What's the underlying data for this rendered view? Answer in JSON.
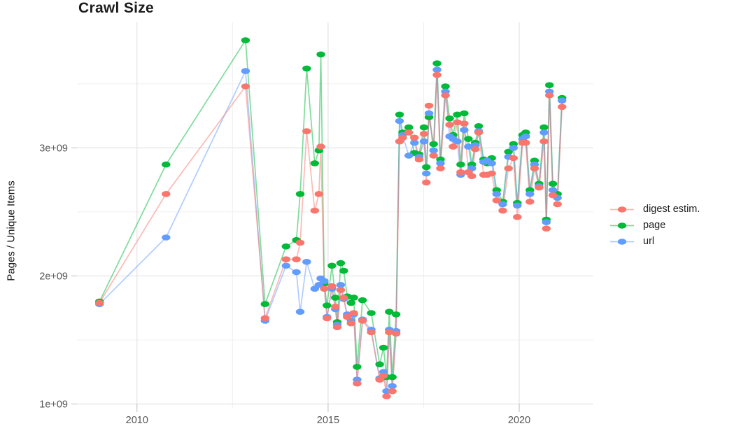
{
  "chart_data": {
    "type": "line",
    "title": "Crawl Size",
    "ylabel": "Pages / Unique Items",
    "xlabel": "",
    "value_unit": "1e9 (billions of pages / unique items)",
    "grid": true,
    "legend_position": "right",
    "marker": "ellipse",
    "xlim": [
      2008.43,
      2021.94
    ],
    "ylim": [
      0.97,
      3.98
    ],
    "x_ticks": [
      {
        "value": 2010,
        "label": "2010"
      },
      {
        "value": 2015,
        "label": "2015"
      },
      {
        "value": 2020,
        "label": "2020"
      }
    ],
    "x_minor": [
      2012.5,
      2017.5
    ],
    "y_ticks": [
      {
        "value": 1,
        "label": "1e+09"
      },
      {
        "value": 2,
        "label": "2e+09"
      },
      {
        "value": 3,
        "label": "3e+09"
      }
    ],
    "y_minor": [
      1.5,
      2.5,
      3.5
    ],
    "x": [
      2009.02,
      2010.76,
      2012.84,
      2013.35,
      2013.9,
      2014.17,
      2014.27,
      2014.44,
      2014.65,
      2014.76,
      2014.81,
      2014.9,
      2014.97,
      2015.1,
      2015.19,
      2015.24,
      2015.33,
      2015.41,
      2015.5,
      2015.6,
      2015.67,
      2015.76,
      2015.9,
      2016.13,
      2016.35,
      2016.45,
      2016.53,
      2016.6,
      2016.68,
      2016.78,
      2016.87,
      2016.95,
      2017.11,
      2017.26,
      2017.38,
      2017.51,
      2017.57,
      2017.64,
      2017.76,
      2017.85,
      2017.94,
      2018.07,
      2018.18,
      2018.27,
      2018.38,
      2018.47,
      2018.56,
      2018.67,
      2018.76,
      2018.85,
      2018.94,
      2019.07,
      2019.16,
      2019.28,
      2019.41,
      2019.57,
      2019.72,
      2019.85,
      2019.95,
      2020.09,
      2020.17,
      2020.28,
      2020.4,
      2020.52,
      2020.65,
      2020.71,
      2020.79,
      2020.88,
      2021.0,
      2021.12
    ],
    "series": [
      {
        "name": "digest estim.",
        "color": "#F8766D",
        "values": [
          1.79,
          2.64,
          3.48,
          1.67,
          2.13,
          2.13,
          2.26,
          3.13,
          2.51,
          2.64,
          3.01,
          1.9,
          1.67,
          1.92,
          1.76,
          1.6,
          1.89,
          1.83,
          1.68,
          1.63,
          1.71,
          1.16,
          1.65,
          1.56,
          1.19,
          1.22,
          1.06,
          1.56,
          1.1,
          1.55,
          3.05,
          3.08,
          3.12,
          3.08,
          2.91,
          3.11,
          2.73,
          3.33,
          2.94,
          3.57,
          2.84,
          3.41,
          3.18,
          3.01,
          3.2,
          2.81,
          3.19,
          2.81,
          2.78,
          2.99,
          3.12,
          2.79,
          2.79,
          2.8,
          2.59,
          2.51,
          2.84,
          2.92,
          2.46,
          3.04,
          3.04,
          2.58,
          2.84,
          2.69,
          3.05,
          2.37,
          3.41,
          2.63,
          2.56,
          3.32
        ]
      },
      {
        "name": "page",
        "color": "#00BA38",
        "values": [
          1.8,
          2.87,
          3.84,
          1.78,
          2.23,
          2.28,
          2.64,
          3.62,
          2.88,
          2.98,
          3.73,
          1.94,
          1.77,
          2.08,
          1.83,
          1.64,
          2.1,
          2.04,
          1.84,
          1.79,
          1.83,
          1.29,
          1.81,
          1.71,
          1.31,
          1.44,
          1.21,
          1.72,
          1.21,
          1.7,
          3.26,
          3.12,
          3.16,
          2.96,
          2.95,
          3.16,
          2.85,
          3.24,
          3.03,
          3.66,
          2.91,
          3.48,
          3.23,
          3.1,
          3.26,
          2.87,
          3.27,
          3.07,
          2.87,
          3.04,
          3.17,
          2.91,
          2.88,
          2.92,
          2.67,
          2.58,
          2.97,
          3.03,
          2.57,
          3.1,
          3.12,
          2.67,
          2.9,
          2.72,
          3.16,
          2.44,
          3.49,
          2.72,
          2.64,
          3.39
        ]
      },
      {
        "name": "url",
        "color": "#619CFF",
        "values": [
          1.78,
          2.3,
          3.6,
          1.65,
          2.08,
          2.03,
          1.72,
          2.11,
          1.9,
          1.93,
          1.98,
          1.96,
          1.68,
          1.9,
          1.74,
          1.62,
          1.93,
          1.82,
          1.7,
          1.65,
          1.7,
          1.19,
          1.66,
          1.58,
          1.2,
          1.25,
          1.1,
          1.58,
          1.14,
          1.57,
          3.21,
          3.1,
          2.94,
          3.04,
          2.93,
          3.05,
          2.8,
          3.27,
          2.98,
          3.61,
          2.88,
          3.44,
          3.09,
          3.07,
          3.05,
          2.79,
          3.14,
          3.01,
          2.84,
          3.02,
          3.13,
          2.89,
          2.9,
          2.88,
          2.64,
          2.56,
          2.93,
          3.0,
          2.55,
          3.07,
          3.09,
          2.64,
          2.87,
          2.7,
          3.12,
          2.42,
          3.44,
          2.67,
          2.61,
          3.37
        ]
      }
    ],
    "colors": {
      "grid_major": "#e3e3e3",
      "grid_minor": "#f0f0f0",
      "tick_mark": "#c9c9c9",
      "tick_label": "#555555",
      "title": "#1c1c1c"
    }
  }
}
